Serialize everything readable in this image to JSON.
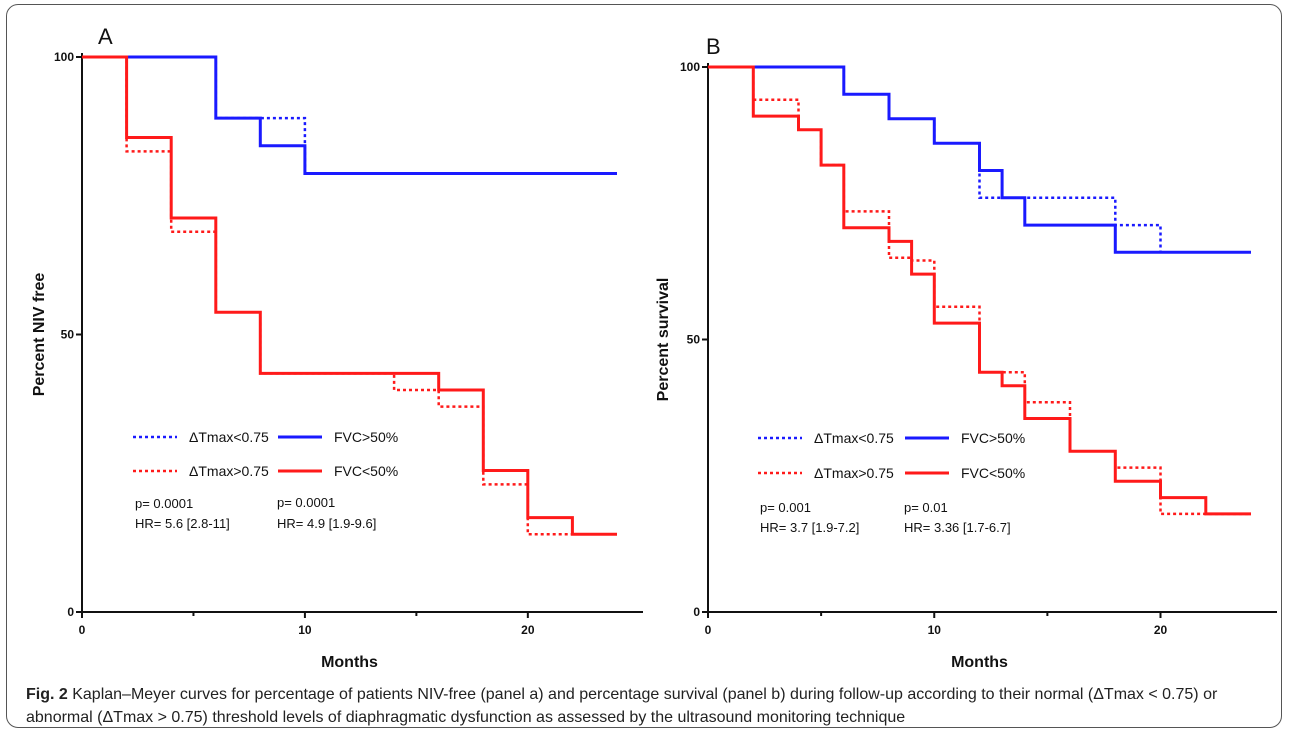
{
  "chart_data": [
    {
      "type": "line",
      "panel_label": "A",
      "xlabel": "Months",
      "ylabel": "Percent NIV free",
      "xlim": [
        0,
        24
      ],
      "ylim": [
        0,
        100
      ],
      "xticks": [
        "0",
        "10",
        "20"
      ],
      "yticks": [
        "0",
        "50",
        "100"
      ],
      "series": [
        {
          "name": "ΔTmax<0.75",
          "color": "#1a1aff",
          "style": "dotted",
          "x": [
            0,
            6,
            6,
            10,
            10,
            24
          ],
          "y": [
            100,
            100,
            89,
            89,
            79,
            79
          ]
        },
        {
          "name": "FVC>50%",
          "color": "#1a1aff",
          "style": "solid",
          "x": [
            0,
            6,
            6,
            8,
            8,
            10,
            10,
            24
          ],
          "y": [
            100,
            100,
            89,
            89,
            84,
            84,
            79,
            79
          ]
        },
        {
          "name": "ΔTmax>0.75",
          "color": "#ff1a1a",
          "style": "dotted",
          "x": [
            0,
            2,
            2,
            4,
            4,
            6,
            6,
            8,
            8,
            14,
            14,
            16,
            16,
            18,
            18,
            20,
            20,
            24
          ],
          "y": [
            100,
            100,
            83,
            83,
            68.5,
            68.5,
            54,
            54,
            43,
            43,
            40,
            40,
            37,
            37,
            23,
            23,
            14,
            14
          ]
        },
        {
          "name": "FVC<50%",
          "color": "#ff1a1a",
          "style": "solid",
          "x": [
            0,
            2,
            2,
            4,
            4,
            6,
            6,
            8,
            8,
            16,
            16,
            18,
            18,
            20,
            20,
            22,
            22,
            24
          ],
          "y": [
            100,
            100,
            85.5,
            85.5,
            71,
            71,
            54,
            54,
            43,
            43,
            40,
            40,
            25.5,
            25.5,
            17,
            17,
            14,
            14
          ]
        }
      ],
      "annotations": [
        {
          "p": "p= 0.0001",
          "hr": "HR= 5.6 [2.8-11]"
        },
        {
          "p": "p= 0.0001",
          "hr": "HR= 4.9 [1.9-9.6]"
        }
      ]
    },
    {
      "type": "line",
      "panel_label": "B",
      "xlabel": "Months",
      "ylabel": "Percent survival",
      "xlim": [
        0,
        24
      ],
      "ylim": [
        0,
        100
      ],
      "xticks": [
        "0",
        "10",
        "20"
      ],
      "yticks": [
        "0",
        "50",
        "100"
      ],
      "series": [
        {
          "name": "ΔTmax<0.75",
          "color": "#1a1aff",
          "style": "dotted",
          "x": [
            0,
            6,
            6,
            8,
            8,
            10,
            10,
            12,
            12,
            18,
            18,
            20,
            20,
            24
          ],
          "y": [
            100,
            100,
            95,
            95,
            90.5,
            90.5,
            86,
            86,
            76,
            76,
            71,
            71,
            66,
            66
          ]
        },
        {
          "name": "FVC>50%",
          "color": "#1a1aff",
          "style": "solid",
          "x": [
            0,
            6,
            6,
            8,
            8,
            10,
            10,
            12,
            12,
            13,
            13,
            14,
            14,
            18,
            18,
            24
          ],
          "y": [
            100,
            100,
            95,
            95,
            90.5,
            90.5,
            86,
            86,
            81,
            81,
            76,
            76,
            71,
            71,
            66,
            66
          ]
        },
        {
          "name": "ΔTmax>0.75",
          "color": "#ff1a1a",
          "style": "dotted",
          "x": [
            0,
            2,
            2,
            4,
            4,
            5,
            5,
            6,
            6,
            8,
            8,
            9,
            9,
            10,
            10,
            12,
            12,
            14,
            14,
            16,
            16,
            18,
            18,
            20,
            20,
            24
          ],
          "y": [
            100,
            100,
            94,
            94,
            88.5,
            88.5,
            82,
            82,
            73.5,
            73.5,
            65,
            65,
            64.5,
            64.5,
            56,
            56,
            44,
            44,
            38.5,
            38.5,
            29.5,
            29.5,
            26.5,
            26.5,
            18,
            18
          ]
        },
        {
          "name": "FVC<50%",
          "color": "#ff1a1a",
          "style": "solid",
          "x": [
            0,
            2,
            2,
            4,
            4,
            5,
            5,
            6,
            6,
            8,
            8,
            9,
            9,
            10,
            10,
            12,
            12,
            13,
            13,
            14,
            14,
            16,
            16,
            18,
            18,
            20,
            20,
            22,
            22,
            24
          ],
          "y": [
            100,
            100,
            91,
            91,
            88.5,
            88.5,
            82,
            82,
            70.5,
            70.5,
            68,
            68,
            62,
            62,
            53,
            53,
            44,
            44,
            41.5,
            41.5,
            35.5,
            35.5,
            29.5,
            29.5,
            24,
            24,
            21,
            21,
            18,
            18
          ]
        }
      ],
      "annotations": [
        {
          "p": "p= 0.001",
          "hr": "HR= 3.7 [1.9-7.2]"
        },
        {
          "p": "p= 0.01",
          "hr": "HR= 3.36 [1.7-6.7]"
        }
      ]
    }
  ],
  "caption": {
    "fig_label": "Fig. 2",
    "text": "Kaplan–Meyer curves for percentage of patients NIV-free (panel a) and percentage survival (panel b) during follow-up according to their normal (ΔTmax < 0.75) or abnormal (ΔTmax > 0.75) threshold levels of diaphragmatic dysfunction as assessed by the ultrasound monitoring technique"
  }
}
